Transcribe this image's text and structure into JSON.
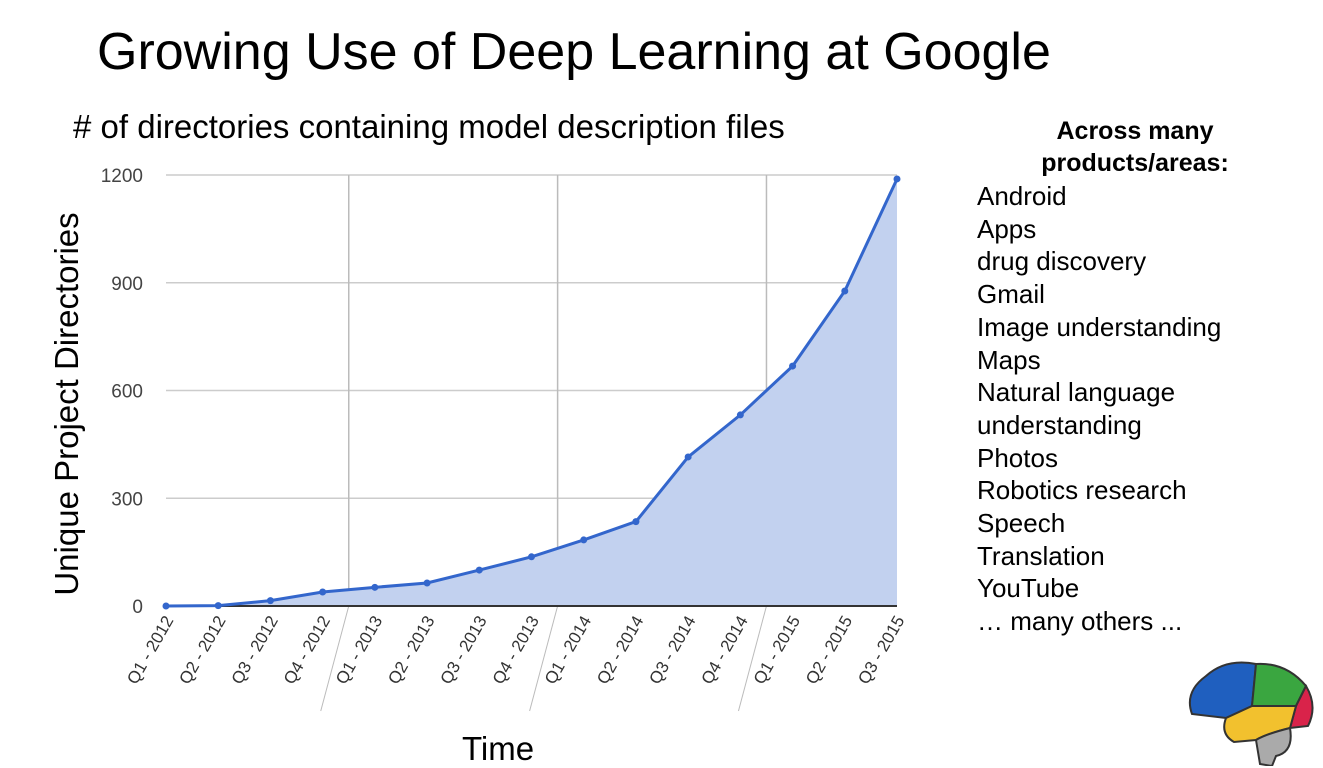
{
  "title": "Growing Use of Deep Learning at Google",
  "sidebar": {
    "heading": "Across many products/areas:",
    "items": [
      "Android",
      "Apps",
      "drug discovery",
      "Gmail",
      "Image understanding",
      "Maps",
      "Natural language",
      "understanding",
      "Photos",
      "Robotics research",
      "Speech",
      "Translation",
      "YouTube",
      "… many others ..."
    ]
  },
  "chart_data": {
    "type": "area",
    "title": "# of directories containing model description files",
    "xlabel": "Time",
    "ylabel": "Unique Project Directories",
    "ylim": [
      0,
      1200
    ],
    "yticks": [
      "0",
      "300",
      "600",
      "900",
      "1200"
    ],
    "grid": true,
    "categories": [
      "Q1 - 2012",
      "Q2 - 2012",
      "Q3 - 2012",
      "Q4 - 2012",
      "Q1 - 2013",
      "Q2 - 2013",
      "Q3 - 2013",
      "Q4 - 2013",
      "Q1 - 2014",
      "Q2 - 2014",
      "Q3 - 2014",
      "Q4 - 2014",
      "Q1 - 2015",
      "Q2 - 2015",
      "Q3 - 2015"
    ],
    "values": [
      0,
      1,
      15,
      39,
      52,
      64,
      100,
      137,
      184,
      235,
      415,
      532,
      668,
      877,
      1189
    ],
    "line_color": "#3366cc",
    "fill_color": "#c2d1ef"
  }
}
